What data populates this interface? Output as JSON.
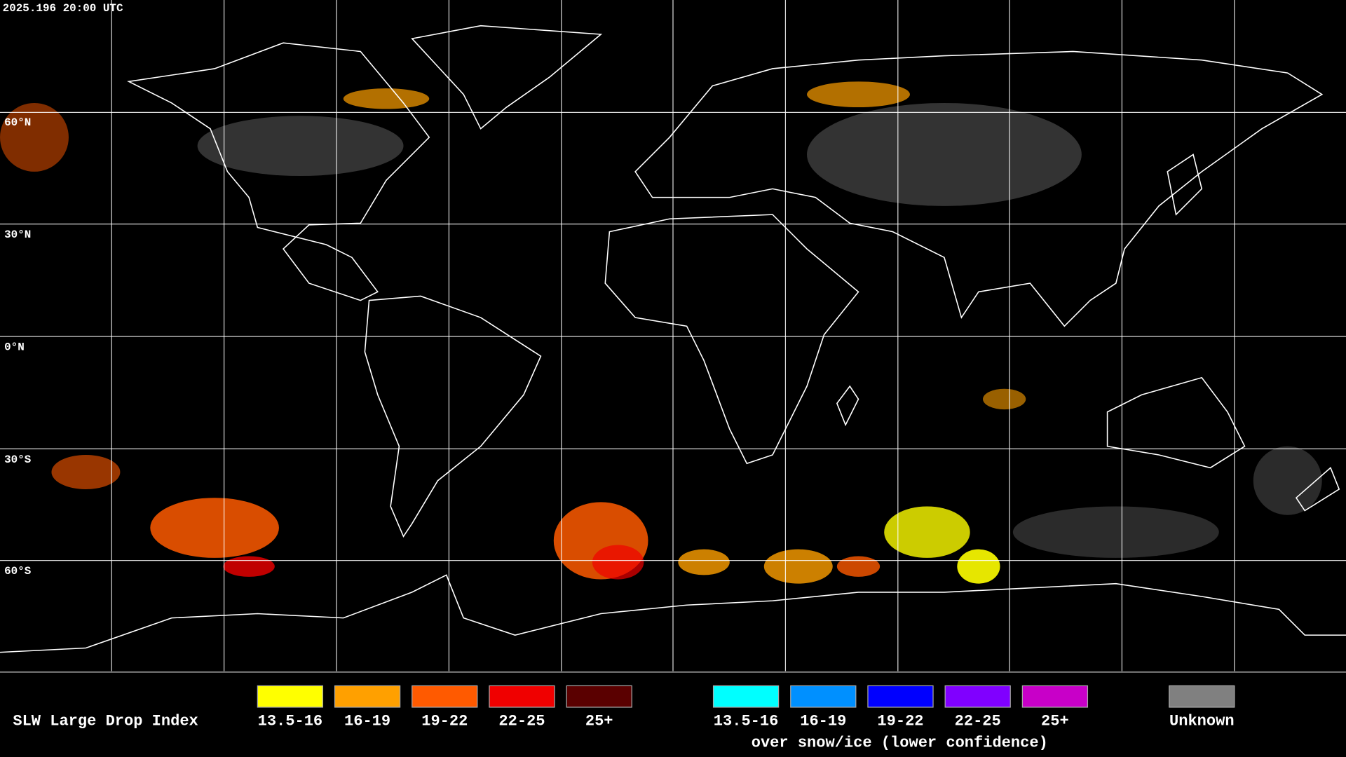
{
  "header": {
    "timestamp": "2025.196 20:00 UTC"
  },
  "map": {
    "latitude_labels": [
      "60°N",
      "30°N",
      "0°N",
      "30°S",
      "60°S"
    ]
  },
  "legend": {
    "title": "SLW Large Drop Index",
    "groups": [
      {
        "items": [
          {
            "label": "13.5-16",
            "color": "#ffff00"
          },
          {
            "label": "16-19",
            "color": "#ffa000"
          },
          {
            "label": "19-22",
            "color": "#ff5a00"
          },
          {
            "label": "22-25",
            "color": "#f00000"
          },
          {
            "label": "25+",
            "color": "#5a0000"
          }
        ]
      },
      {
        "items": [
          {
            "label": "13.5-16",
            "color": "#00ffff"
          },
          {
            "label": "16-19",
            "color": "#0090ff"
          },
          {
            "label": "19-22",
            "color": "#0000ff"
          },
          {
            "label": "22-25",
            "color": "#8000ff"
          },
          {
            "label": "25+",
            "color": "#c800c8"
          }
        ],
        "note": "over snow/ice (lower confidence)"
      }
    ],
    "unknown": {
      "label": "Unknown",
      "color": "#808080"
    }
  }
}
